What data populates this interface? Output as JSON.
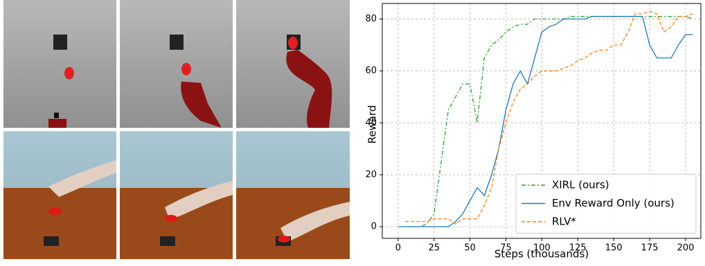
{
  "chart_data": {
    "type": "line",
    "xlabel": "Steps (thousands)",
    "ylabel": "Reward",
    "x": [
      0,
      5,
      10,
      15,
      20,
      25,
      30,
      35,
      40,
      45,
      50,
      55,
      60,
      65,
      70,
      75,
      80,
      85,
      90,
      95,
      100,
      105,
      110,
      115,
      120,
      125,
      130,
      135,
      140,
      145,
      150,
      155,
      160,
      165,
      170,
      175,
      180,
      185,
      190,
      195,
      200,
      205
    ],
    "series": [
      {
        "name": "XIRL (ours)",
        "color": "#2ca02c",
        "dash": "6 3 2 3",
        "values": [
          null,
          null,
          0,
          0,
          1,
          5,
          25,
          45,
          50,
          55,
          55,
          40,
          65,
          70,
          72,
          75,
          77,
          78,
          78,
          80,
          80,
          80,
          80,
          80,
          81,
          81,
          81,
          81,
          81,
          81,
          81,
          81,
          81,
          81,
          81,
          81,
          81,
          81,
          81,
          81,
          81,
          80
        ]
      },
      {
        "name": "Env Reward Only (ours)",
        "color": "#1f77b4",
        "dash": "",
        "values": [
          0,
          0,
          0,
          0,
          0,
          0,
          0,
          0,
          2,
          5,
          10,
          15,
          12,
          20,
          30,
          45,
          55,
          60,
          55,
          65,
          75,
          77,
          78,
          80,
          80,
          80,
          80,
          81,
          81,
          81,
          81,
          81,
          81,
          81,
          81,
          70,
          65,
          65,
          65,
          70,
          74,
          74
        ]
      },
      {
        "name": "RLV*",
        "color": "#ff7f0e",
        "dash": "5 3",
        "values": [
          null,
          2,
          2,
          2,
          2,
          3,
          3,
          3,
          1,
          3,
          3,
          3,
          8,
          15,
          30,
          40,
          48,
          53,
          55,
          58,
          60,
          60,
          60,
          61,
          62,
          64,
          65,
          67,
          68,
          68,
          70,
          70,
          75,
          82,
          82,
          83,
          82,
          75,
          77,
          81,
          81,
          82
        ]
      }
    ],
    "xlim": [
      -11,
      210.6
    ],
    "ylim": [
      -4.5,
      86
    ],
    "xticks": [
      0,
      25,
      50,
      75,
      100,
      125,
      150,
      175,
      200
    ],
    "yticks": [
      0,
      20,
      40,
      60,
      80
    ],
    "grid": true,
    "legend": "lower right"
  }
}
